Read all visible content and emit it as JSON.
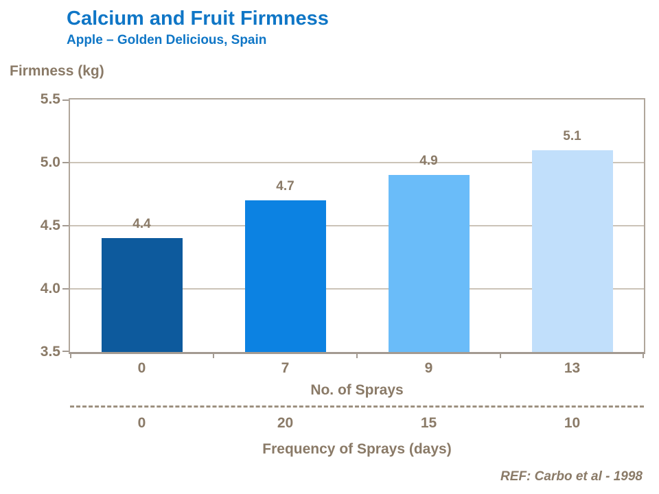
{
  "slide": {
    "title": "Calcium and Fruit Firmness",
    "subtitle": "Apple – Golden Delicious, Spain",
    "y_axis_title": "Firmness (kg)",
    "reference": "REF: Carbo et al - 1998"
  },
  "colors": {
    "title_blue": "#0f76c6",
    "text_brown": "#8a7a67",
    "grid_line": "#cbc3b7",
    "plot_border": "#b0a69b",
    "axis_line": "#a39a91",
    "dashed_line": "#9d9080"
  },
  "chart_data": {
    "type": "bar",
    "title": "Calcium and Fruit Firmness",
    "subtitle": "Apple – Golden Delicious, Spain",
    "ylabel": "Firmness (kg)",
    "xlabel": "No. of Sprays",
    "xlabel_secondary": "Frequency of Sprays (days)",
    "categories": [
      "0",
      "7",
      "9",
      "13"
    ],
    "secondary_categories": [
      "0",
      "20",
      "15",
      "10"
    ],
    "values": [
      4.4,
      4.7,
      4.9,
      5.1
    ],
    "data_labels": [
      "4.4",
      "4.7",
      "4.9",
      "5.1"
    ],
    "bar_colors": [
      "#0d5a9d",
      "#0c82e2",
      "#6abcf9",
      "#c1dffb"
    ],
    "ylim": [
      3.5,
      5.5
    ],
    "yticks": [
      "3.5",
      "4.0",
      "4.5",
      "5.0",
      "5.5"
    ],
    "grid": true,
    "legend_position": "none",
    "reference": "REF: Carbo et al - 1998"
  }
}
